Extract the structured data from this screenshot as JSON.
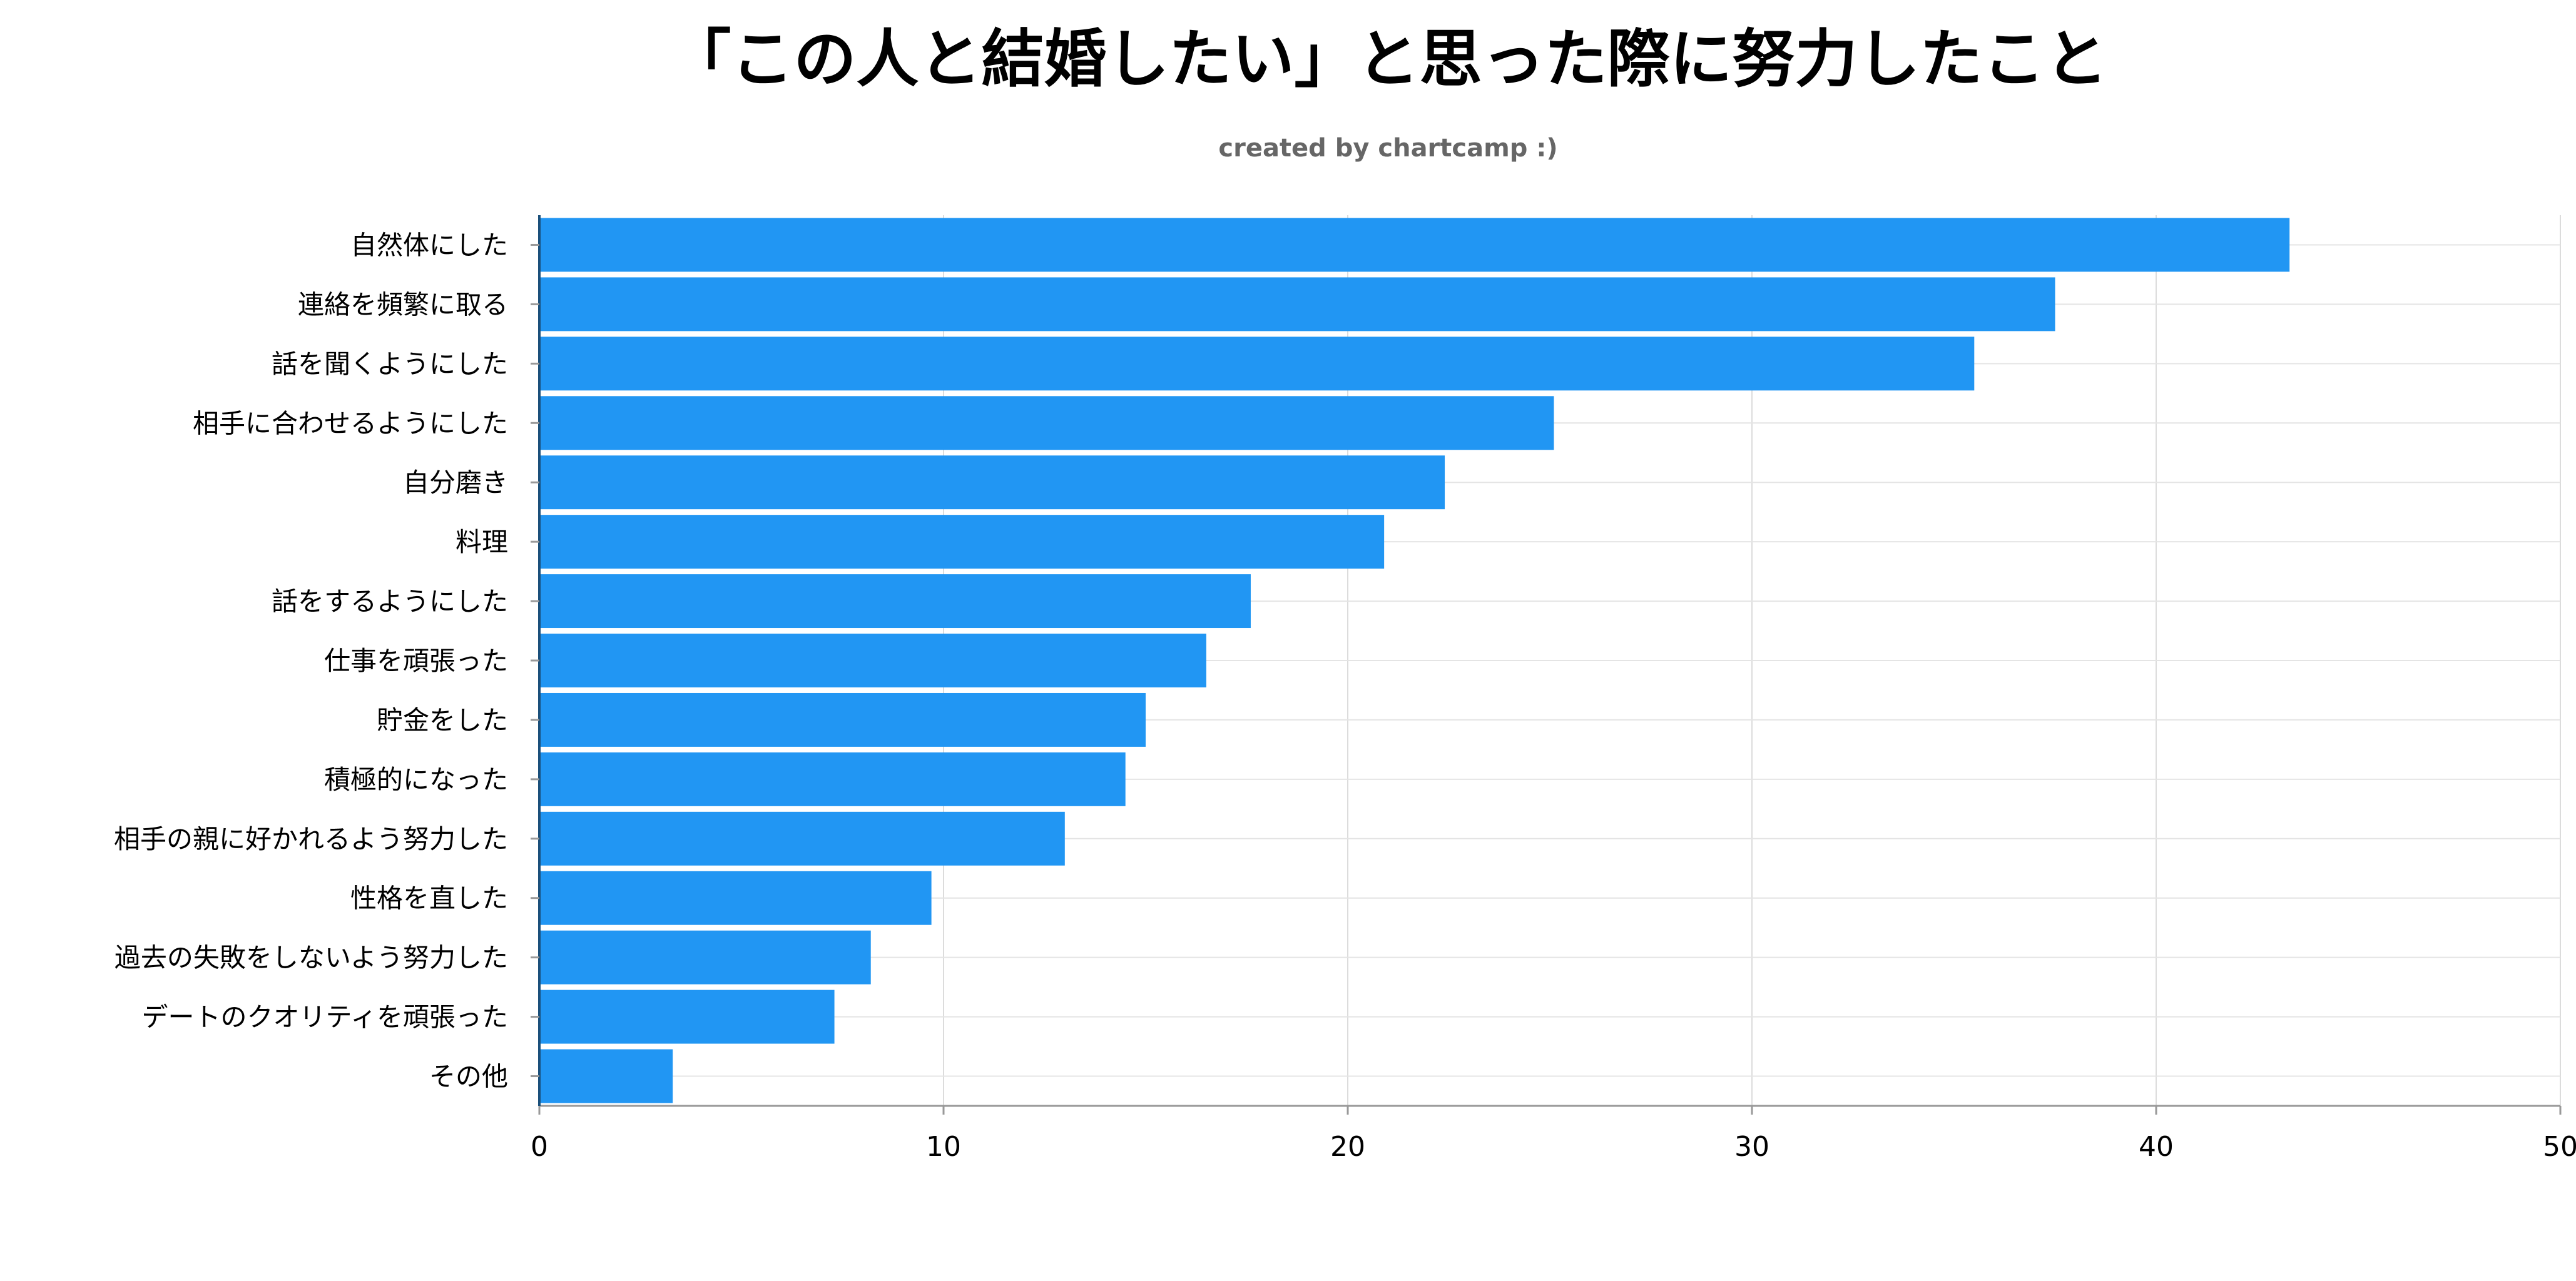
{
  "chart_data": {
    "type": "bar",
    "orientation": "horizontal",
    "title": "「この人と結婚したい」と思った際に努力したこと",
    "subtitle": "created by chartcamp :)",
    "xlabel": "",
    "ylabel": "",
    "xlim": [
      0,
      50
    ],
    "xticks": [
      0,
      10,
      20,
      30,
      40,
      50
    ],
    "grid": true,
    "legend": "none",
    "bar_color": "#2196f3",
    "categories": [
      "自然体にした",
      "連絡を頻繁に取る",
      "話を聞くようにした",
      "相手に合わせるようにした",
      "自分磨き",
      "料理",
      "話をするようにした",
      "仕事を頑張った",
      "貯金をした",
      "積極的になった",
      "相手の親に好かれるよう努力した",
      "性格を直した",
      "過去の失敗をしないよう努力した",
      "デートのクオリティを頑張った",
      "その他"
    ],
    "values": [
      43.3,
      37.5,
      35.5,
      25.1,
      22.4,
      20.9,
      17.6,
      16.5,
      15.0,
      14.5,
      13.0,
      9.7,
      8.2,
      7.3,
      3.3
    ]
  }
}
